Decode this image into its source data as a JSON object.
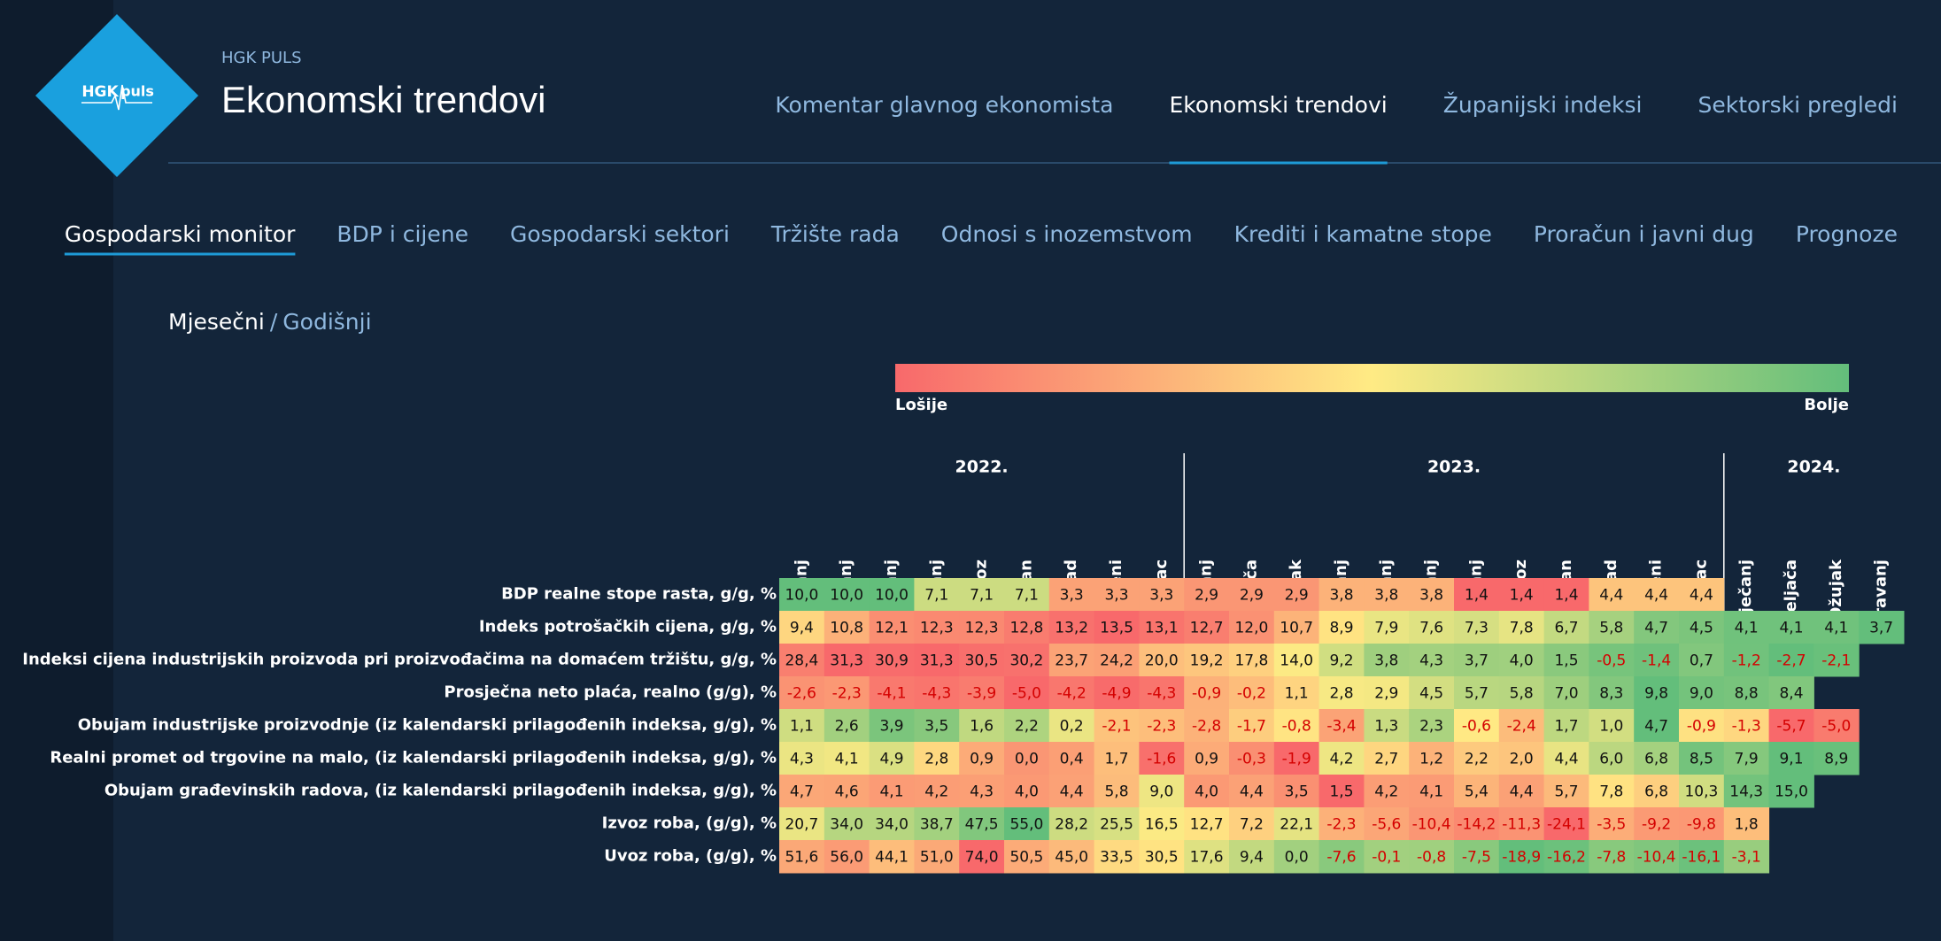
{
  "header": {
    "logo": [
      "HGK",
      "puls"
    ],
    "brand": "HGK PULS",
    "title": "Ekonomski trendovi"
  },
  "nav": [
    "Komentar glavnog ekonomista",
    "Ekonomski trendovi",
    "Županijski indeksi",
    "Sektorski pregledi"
  ],
  "nav_active": 1,
  "subnav": [
    "Gospodarski monitor",
    "BDP i cijene",
    "Gospodarski sektori",
    "Tržište rada",
    "Odnosi s inozemstvom",
    "Krediti i kamatne stope",
    "Proračun i javni dug",
    "Prognoze"
  ],
  "subnav_active": 0,
  "period_toggle": {
    "active": "Mjesečni",
    "separator": "/",
    "other": "Godišnji"
  },
  "legend": {
    "low": "Lošije",
    "high": "Bolje",
    "scale_colors": [
      "#f8696b",
      "#ffeb84",
      "#63be7b"
    ]
  },
  "table": {
    "years": [
      {
        "label": "2022.",
        "months": [
          "Travanj",
          "Svibanj",
          "Lipanj",
          "Srpanj",
          "Kolovoz",
          "Rujan",
          "Listopad",
          "Studeni",
          "Prosinac"
        ]
      },
      {
        "label": "2023.",
        "months": [
          "Siječanj",
          "Veljača",
          "Ožujak",
          "Travanj",
          "Svibanj",
          "Lipanj",
          "Srpanj",
          "Kolovoz",
          "Rujan",
          "Listopad",
          "Studeni",
          "Prosinac"
        ]
      },
      {
        "label": "2024.",
        "months": [
          "Siječanj",
          "Veljača",
          "Ožujak",
          "Travanj"
        ]
      }
    ],
    "rows": [
      {
        "label": "BDP realne stope rasta, g/g, %",
        "better": "higher",
        "cells": [
          "10,0",
          "10,0",
          "10,0",
          "7,1",
          "7,1",
          "7,1",
          "3,3",
          "3,3",
          "3,3",
          "2,9",
          "2,9",
          "2,9",
          "3,8",
          "3,8",
          "3,8",
          "1,4",
          "1,4",
          "1,4",
          "4,4",
          "4,4",
          "4,4",
          null,
          null,
          null,
          null
        ]
      },
      {
        "label": "Indeks potrošačkih cijena, g/g, %",
        "better": "lower",
        "cells": [
          "9,4",
          "10,8",
          "12,1",
          "12,3",
          "12,3",
          "12,8",
          "13,2",
          "13,5",
          "13,1",
          "12,7",
          "12,0",
          "10,7",
          "8,9",
          "7,9",
          "7,6",
          "7,3",
          "7,8",
          "6,7",
          "5,8",
          "4,7",
          "4,5",
          "4,1",
          "4,1",
          "4,1",
          "3,7"
        ]
      },
      {
        "label": "Indeksi cijena industrijskih proizvoda pri proizvođačima na domaćem tržištu, g/g, %",
        "better": "lower",
        "cells": [
          "28,4",
          "31,3",
          "30,9",
          "31,3",
          "30,5",
          "30,2",
          "23,7",
          "24,2",
          "20,0",
          "19,2",
          "17,8",
          "14,0",
          "9,2",
          "3,8",
          "4,3",
          "3,7",
          "4,0",
          "1,5",
          "-0,5",
          "-1,4",
          "0,7",
          "-1,2",
          "-2,7",
          "-2,1",
          null
        ]
      },
      {
        "label": "Prosječna neto plaća, realno (g/g), %",
        "better": "higher",
        "cells": [
          "-2,6",
          "-2,3",
          "-4,1",
          "-4,3",
          "-3,9",
          "-5,0",
          "-4,2",
          "-4,9",
          "-4,3",
          "-0,9",
          "-0,2",
          "1,1",
          "2,8",
          "2,9",
          "4,5",
          "5,7",
          "5,8",
          "7,0",
          "8,3",
          "9,8",
          "9,0",
          "8,8",
          "8,4",
          null,
          null
        ]
      },
      {
        "label": "Obujam industrijske proizvodnje (iz kalendarski prilagođenih indeksa, g/g), %",
        "better": "higher",
        "cells": [
          "1,1",
          "2,6",
          "3,9",
          "3,5",
          "1,6",
          "2,2",
          "0,2",
          "-2,1",
          "-2,3",
          "-2,8",
          "-1,7",
          "-0,8",
          "-3,4",
          "1,3",
          "2,3",
          "-0,6",
          "-2,4",
          "1,7",
          "1,0",
          "4,7",
          "-0,9",
          "-1,3",
          "-5,7",
          "-5,0",
          null
        ]
      },
      {
        "label": "Realni promet od trgovine na malo, (iz kalendarski prilagođenih indeksa, g/g), %",
        "better": "higher",
        "cells": [
          "4,3",
          "4,1",
          "4,9",
          "2,8",
          "0,9",
          "0,0",
          "0,4",
          "1,7",
          "-1,6",
          "0,9",
          "-0,3",
          "-1,9",
          "4,2",
          "2,7",
          "1,2",
          "2,2",
          "2,0",
          "4,4",
          "6,0",
          "6,8",
          "8,5",
          "7,9",
          "9,1",
          "8,9",
          null
        ]
      },
      {
        "label": "Obujam građevinskih radova, (iz kalendarski prilagođenih indeksa, g/g), %",
        "better": "higher",
        "cells": [
          "4,7",
          "4,6",
          "4,1",
          "4,2",
          "4,3",
          "4,0",
          "4,4",
          "5,8",
          "9,0",
          "4,0",
          "4,4",
          "3,5",
          "1,5",
          "4,2",
          "4,1",
          "5,4",
          "4,4",
          "5,7",
          "7,8",
          "6,8",
          "10,3",
          "14,3",
          "15,0",
          null,
          null
        ]
      },
      {
        "label": "Izvoz roba, (g/g), %",
        "better": "higher",
        "cells": [
          "20,7",
          "34,0",
          "34,0",
          "38,7",
          "47,5",
          "55,0",
          "28,2",
          "25,5",
          "16,5",
          "12,7",
          "7,2",
          "22,1",
          "-2,3",
          "-5,6",
          "-10,4",
          "-14,2",
          "-11,3",
          "-24,1",
          "-3,5",
          "-9,2",
          "-9,8",
          "1,8",
          null,
          null,
          null
        ]
      },
      {
        "label": "Uvoz roba, (g/g), %",
        "better": "lower",
        "cells": [
          "51,6",
          "56,0",
          "44,1",
          "51,0",
          "74,0",
          "50,5",
          "45,0",
          "33,5",
          "30,5",
          "17,6",
          "9,4",
          "0,0",
          "-7,6",
          "-0,1",
          "-0,8",
          "-7,5",
          "-18,9",
          "-16,2",
          "-7,8",
          "-10,4",
          "-16,1",
          "-3,1",
          null,
          null,
          null
        ]
      }
    ]
  }
}
